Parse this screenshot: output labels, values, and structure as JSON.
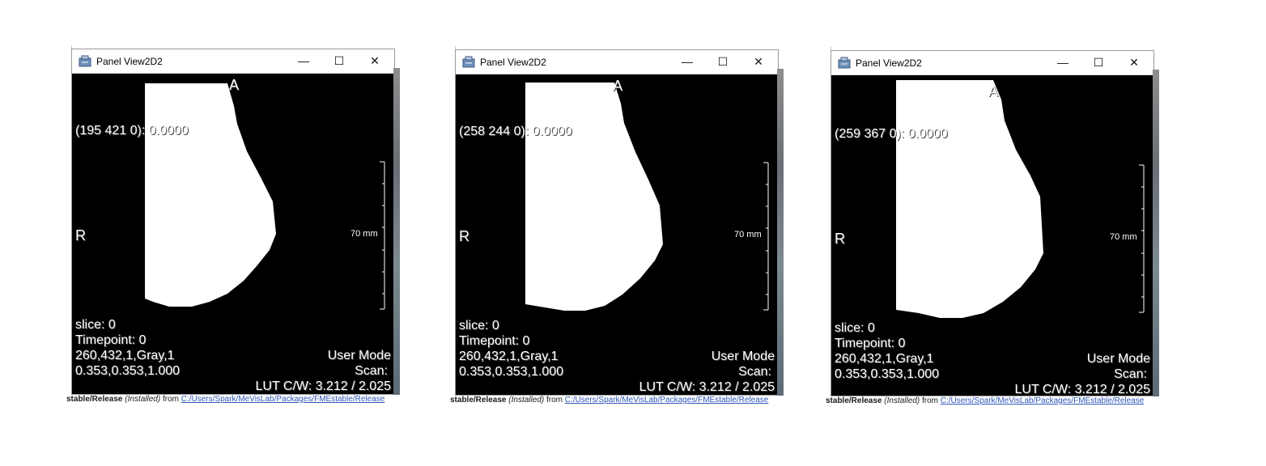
{
  "panels": [
    {
      "title": "Panel View2D2",
      "coord": "(195 421 0): 0.0000",
      "orient_top": "A",
      "orient_left": "R",
      "scale_label": "70 mm",
      "info": [
        "slice:  0",
        "Timepoint: 0",
        "260,432,1,Gray,1",
        "0.353,0.353,1.000"
      ],
      "mode": "User Mode",
      "scan": "Scan:",
      "lut": "LUT C/W: 3.212 / 2.025",
      "status": {
        "bold": "stable/Release",
        "italic": "(Installed)",
        "plain": "from",
        "link": "C:/Users/Spark/MeVisLab/Packages/FMEstable/Release"
      }
    },
    {
      "title": "Panel View2D2",
      "coord": "(258 244 0): 0.0000",
      "orient_top": "A",
      "orient_left": "R",
      "scale_label": "70 mm",
      "info": [
        "slice:  0",
        "Timepoint: 0",
        "260,432,1,Gray,1",
        "0.353,0.353,1.000"
      ],
      "mode": "User Mode",
      "scan": "Scan:",
      "lut": "LUT C/W: 3.212 / 2.025",
      "status": {
        "bold": "stable/Release",
        "italic": "(Installed)",
        "plain": "from",
        "link": "C:/Users/Spark/MeVisLab/Packages/FMEstable/Release"
      }
    },
    {
      "title": "Panel View2D2",
      "coord": "(259 367 0): 0.0000",
      "orient_top": "A",
      "orient_left": "R",
      "scale_label": "70 mm",
      "info": [
        "slice:  0",
        "Timepoint: 0",
        "260,432,1,Gray,1",
        "0.353,0.353,1.000"
      ],
      "mode": "User Mode",
      "scan": "Scan:",
      "lut": "LUT C/W: 3.212 / 2.025",
      "status": {
        "bold": "stable/Release",
        "italic": "(Installed)",
        "plain": "from",
        "link": "C:/Users/Spark/MeVisLab/Packages/FMEstable/Release"
      }
    }
  ],
  "window_controls": {
    "minimize": "—",
    "maximize": "☐",
    "close": "✕"
  },
  "icons": {
    "app": "panel-view-icon",
    "minimize": "minimize-icon",
    "maximize": "maximize-icon",
    "close": "close-icon"
  },
  "colors": {
    "segmentation": "#ffffff",
    "background": "#000000",
    "overlay_text": "#ffffff"
  }
}
